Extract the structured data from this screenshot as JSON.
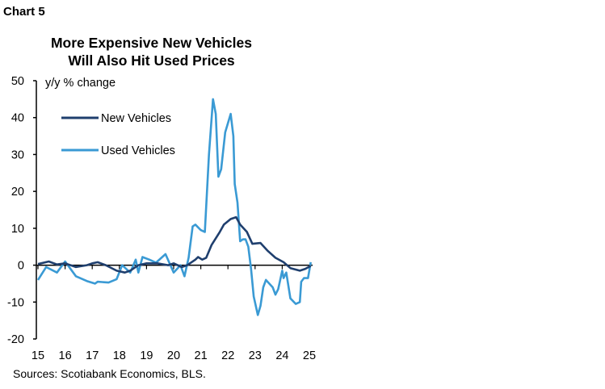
{
  "chart_label": "Chart 5",
  "chart_data": {
    "type": "line",
    "title": "More Expensive New Vehicles Will Also Hit Used Prices",
    "title_lines": [
      "More Expensive New Vehicles",
      "Will Also Hit Used Prices"
    ],
    "ylabel": "y/y % change",
    "xlabel": "",
    "ylim": [
      -20,
      50
    ],
    "yticks": [
      50,
      40,
      30,
      20,
      10,
      0,
      -10,
      -20
    ],
    "xlim": [
      2015,
      2025
    ],
    "xticks": [
      2015,
      2016,
      2017,
      2018,
      2019,
      2020,
      2021,
      2022,
      2023,
      2024,
      2025
    ],
    "xtick_labels": [
      "15",
      "16",
      "17",
      "18",
      "19",
      "20",
      "21",
      "22",
      "23",
      "24",
      "25"
    ],
    "grid": false,
    "legend": "top-left",
    "series": [
      {
        "name": "New Vehicles",
        "color": "#1f3f6e",
        "x": [
          2015.0,
          2015.4,
          2015.7,
          2016.0,
          2016.4,
          2016.8,
          2017.0,
          2017.2,
          2017.5,
          2017.9,
          2018.2,
          2018.4,
          2018.7,
          2019.0,
          2019.4,
          2019.8,
          2020.0,
          2020.3,
          2020.5,
          2020.8,
          2020.9,
          2021.05,
          2021.2,
          2021.4,
          2021.7,
          2021.85,
          2022.1,
          2022.3,
          2022.45,
          2022.7,
          2022.9,
          2023.2,
          2023.45,
          2023.75,
          2024.05,
          2024.3,
          2024.65,
          2024.85,
          2025.05
        ],
        "y": [
          0.3,
          1,
          0.2,
          0.5,
          -0.5,
          0,
          0.5,
          0.8,
          0,
          -1.5,
          -2,
          -1.5,
          0,
          0.5,
          0.5,
          0,
          0.5,
          -0.5,
          0,
          1.5,
          2.2,
          1.5,
          2,
          5.5,
          9,
          11,
          12.5,
          13,
          11,
          9,
          5.8,
          6,
          4,
          2,
          0.8,
          -0.8,
          -1.5,
          -1,
          -0.2
        ]
      },
      {
        "name": "Used Vehicles",
        "color": "#3a9ad4",
        "x": [
          2015.0,
          2015.3,
          2015.7,
          2016.0,
          2016.4,
          2016.8,
          2017.1,
          2017.2,
          2017.6,
          2017.9,
          2018.1,
          2018.4,
          2018.6,
          2018.7,
          2018.85,
          2019.1,
          2019.35,
          2019.7,
          2020.0,
          2020.25,
          2020.4,
          2020.55,
          2020.7,
          2020.8,
          2021.0,
          2021.15,
          2021.3,
          2021.45,
          2021.55,
          2021.65,
          2021.75,
          2021.9,
          2022.1,
          2022.2,
          2022.25,
          2022.35,
          2022.45,
          2022.55,
          2022.65,
          2022.75,
          2022.85,
          2022.95,
          2023.1,
          2023.2,
          2023.3,
          2023.4,
          2023.65,
          2023.75,
          2023.85,
          2024.0,
          2024.05,
          2024.15,
          2024.3,
          2024.5,
          2024.65,
          2024.7,
          2024.8,
          2024.95,
          2025.05
        ],
        "y": [
          -4,
          -0.5,
          -2,
          1,
          -3,
          -4.3,
          -5,
          -4.5,
          -4.7,
          -3.8,
          0,
          -2,
          1.5,
          -2,
          2.2,
          1.5,
          0.7,
          3,
          -2,
          0,
          -3,
          2,
          10.5,
          11,
          9.5,
          9,
          30,
          45,
          41,
          24,
          26,
          36,
          41,
          35,
          22,
          17,
          6.5,
          7,
          7,
          5,
          -1,
          -8.5,
          -13.5,
          -11,
          -6,
          -4,
          -6,
          -8,
          -6.5,
          -1.5,
          -3.5,
          -2,
          -9,
          -10.5,
          -10,
          -4.5,
          -3.5,
          -3.5,
          0.8
        ]
      }
    ]
  },
  "source": "Sources: Scotiabank Economics, BLS."
}
